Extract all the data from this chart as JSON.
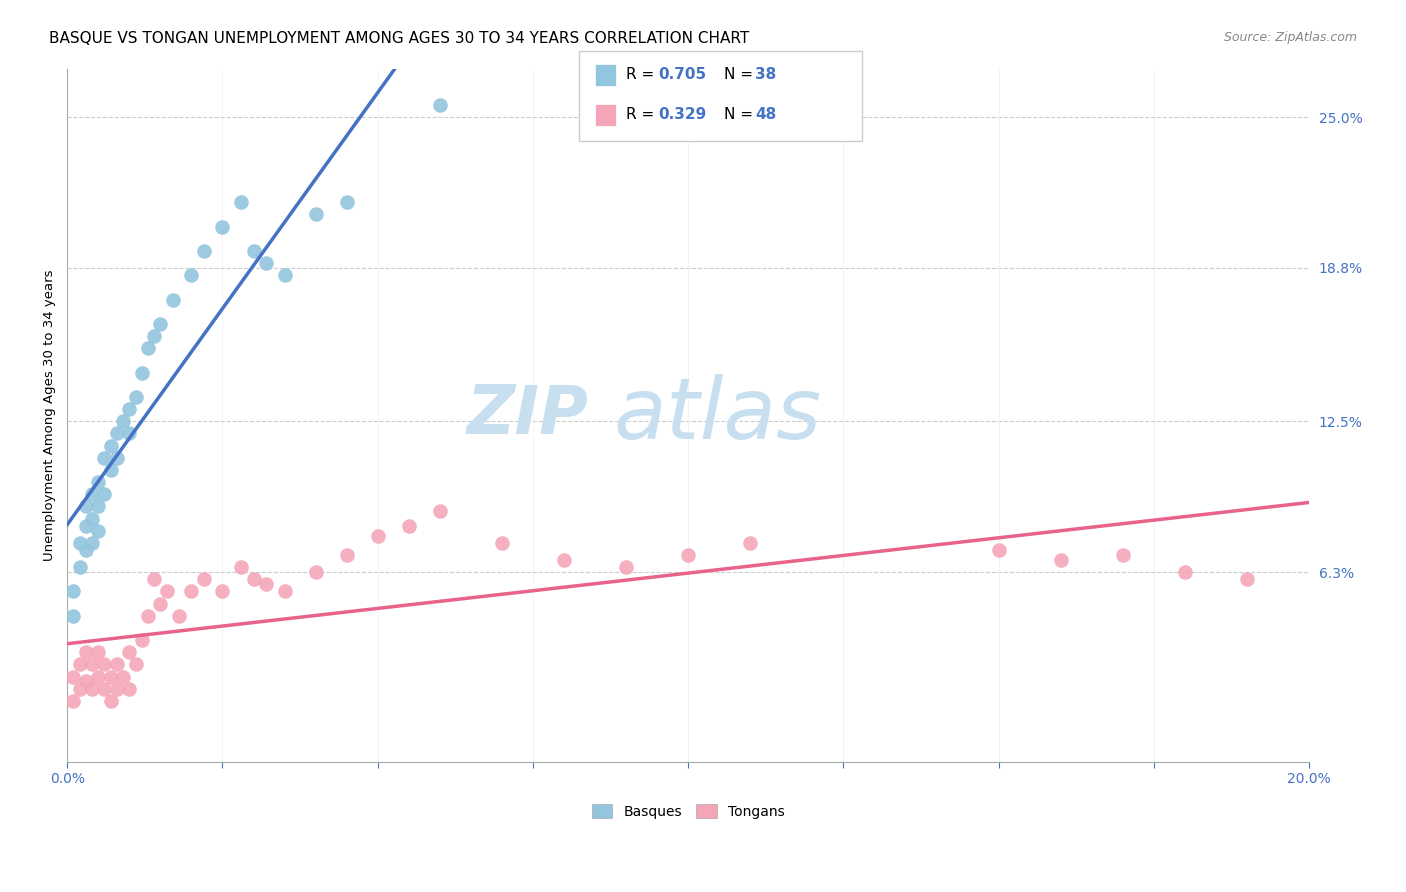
{
  "title": "BASQUE VS TONGAN UNEMPLOYMENT AMONG AGES 30 TO 34 YEARS CORRELATION CHART",
  "source": "Source: ZipAtlas.com",
  "ylabel": "Unemployment Among Ages 30 to 34 years",
  "xlim": [
    0.0,
    0.2
  ],
  "ylim": [
    -0.015,
    0.27
  ],
  "ytick_positions": [
    0.063,
    0.125,
    0.188,
    0.25
  ],
  "ytick_labels": [
    "6.3%",
    "12.5%",
    "18.8%",
    "25.0%"
  ],
  "basque_color": "#92c5de",
  "tongan_color": "#f4a6b8",
  "basque_line_color": "#4472c4",
  "tongan_line_color": "#e8638a",
  "background_color": "#ffffff",
  "watermark_zip_color": "#c8dff0",
  "watermark_atlas_color": "#c8dff0",
  "legend_r_color": "#4472c4",
  "legend_n_color": "#4472c4",
  "legend_basque_r": 0.705,
  "legend_basque_n": 38,
  "legend_tongan_r": 0.329,
  "legend_tongan_n": 48,
  "basque_x": [
    0.001,
    0.001,
    0.002,
    0.002,
    0.003,
    0.003,
    0.003,
    0.004,
    0.004,
    0.004,
    0.005,
    0.005,
    0.005,
    0.006,
    0.006,
    0.007,
    0.007,
    0.008,
    0.008,
    0.009,
    0.01,
    0.01,
    0.011,
    0.012,
    0.013,
    0.014,
    0.015,
    0.017,
    0.02,
    0.022,
    0.025,
    0.028,
    0.03,
    0.032,
    0.035,
    0.04,
    0.045,
    0.06
  ],
  "basque_y": [
    0.055,
    0.045,
    0.075,
    0.065,
    0.09,
    0.082,
    0.072,
    0.095,
    0.085,
    0.075,
    0.1,
    0.09,
    0.08,
    0.11,
    0.095,
    0.115,
    0.105,
    0.12,
    0.11,
    0.125,
    0.13,
    0.12,
    0.135,
    0.145,
    0.155,
    0.16,
    0.165,
    0.175,
    0.185,
    0.195,
    0.205,
    0.215,
    0.195,
    0.19,
    0.185,
    0.21,
    0.215,
    0.255
  ],
  "tongan_x": [
    0.001,
    0.001,
    0.002,
    0.002,
    0.003,
    0.003,
    0.004,
    0.004,
    0.005,
    0.005,
    0.006,
    0.006,
    0.007,
    0.007,
    0.008,
    0.008,
    0.009,
    0.01,
    0.01,
    0.011,
    0.012,
    0.013,
    0.014,
    0.015,
    0.016,
    0.018,
    0.02,
    0.022,
    0.025,
    0.028,
    0.03,
    0.032,
    0.035,
    0.04,
    0.045,
    0.05,
    0.055,
    0.06,
    0.07,
    0.08,
    0.09,
    0.1,
    0.11,
    0.15,
    0.16,
    0.17,
    0.18,
    0.19
  ],
  "tongan_y": [
    0.02,
    0.01,
    0.025,
    0.015,
    0.03,
    0.018,
    0.025,
    0.015,
    0.03,
    0.02,
    0.025,
    0.015,
    0.02,
    0.01,
    0.025,
    0.015,
    0.02,
    0.03,
    0.015,
    0.025,
    0.035,
    0.045,
    0.06,
    0.05,
    0.055,
    0.045,
    0.055,
    0.06,
    0.055,
    0.065,
    0.06,
    0.058,
    0.055,
    0.063,
    0.07,
    0.078,
    0.082,
    0.088,
    0.075,
    0.068,
    0.065,
    0.07,
    0.075,
    0.072,
    0.068,
    0.07,
    0.063,
    0.06
  ],
  "grid_color": "#cccccc",
  "title_fontsize": 11,
  "axis_label_fontsize": 9.5,
  "tick_fontsize": 10
}
